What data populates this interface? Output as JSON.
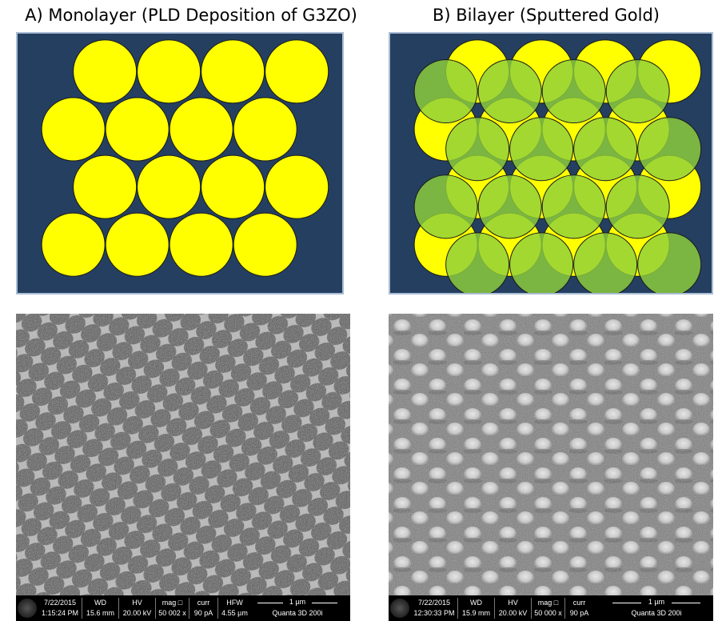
{
  "panel_a": {
    "title": "A) Monolayer (PLD Deposition of G3ZO)",
    "databar": {
      "date": "7/22/2015",
      "time": "1:15:24 PM",
      "wd_label": "WD",
      "wd_value": "15.6 mm",
      "hv_label": "HV",
      "hv_value": "20.00 kV",
      "mag_label": "mag □",
      "mag_value": "50 002 x",
      "curr_label": "curr",
      "curr_value": "90 pA",
      "hfw_label": "HFW",
      "hfw_value": "4.55 µm",
      "scale_label": "1 µm",
      "instrument": "Quanta 3D 200i"
    }
  },
  "panel_b": {
    "title": "B) Bilayer (Sputtered Gold)",
    "databar": {
      "date": "7/22/2015",
      "time": "12:30:33 PM",
      "wd_label": "WD",
      "wd_value": "15.9 mm",
      "hv_label": "HV",
      "hv_value": "20.00 kV",
      "mag_label": "mag □",
      "mag_value": "50 000 x",
      "curr_label": "curr",
      "curr_value": "90 pA",
      "scale_label": "1 µm",
      "instrument": "Quanta 3D 200i"
    }
  },
  "colors": {
    "background_blue": "#243f60",
    "sphere_yellow": "#ffff00",
    "overlay_green": "#8fd03c"
  }
}
